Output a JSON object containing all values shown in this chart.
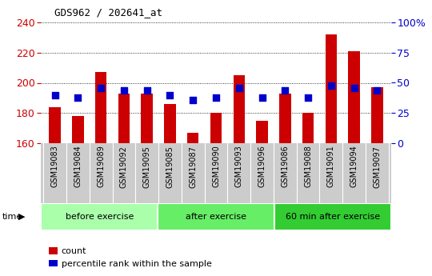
{
  "title": "GDS962 / 202641_at",
  "samples": [
    "GSM19083",
    "GSM19084",
    "GSM19089",
    "GSM19092",
    "GSM19095",
    "GSM19085",
    "GSM19087",
    "GSM19090",
    "GSM19093",
    "GSM19096",
    "GSM19086",
    "GSM19088",
    "GSM19091",
    "GSM19094",
    "GSM19097"
  ],
  "counts": [
    184,
    178,
    207,
    193,
    193,
    186,
    167,
    180,
    205,
    175,
    193,
    180,
    232,
    221,
    197
  ],
  "percentiles": [
    40,
    38,
    46,
    44,
    44,
    40,
    36,
    38,
    46,
    38,
    44,
    38,
    48,
    46,
    44
  ],
  "groups": [
    {
      "label": "before exercise",
      "start": 0,
      "end": 5,
      "color": "#aaffaa"
    },
    {
      "label": "after exercise",
      "start": 5,
      "end": 10,
      "color": "#66ee66"
    },
    {
      "label": "60 min after exercise",
      "start": 10,
      "end": 15,
      "color": "#33cc33"
    }
  ],
  "ylim_left": [
    160,
    240
  ],
  "ylim_right": [
    0,
    100
  ],
  "yticks_left": [
    160,
    180,
    200,
    220,
    240
  ],
  "yticks_right": [
    0,
    25,
    50,
    75,
    100
  ],
  "bar_color": "#cc0000",
  "dot_color": "#0000cc",
  "bar_width": 0.5,
  "dot_size": 40,
  "background_color": "#cccccc",
  "plot_bg_color": "#ffffff",
  "left_tick_color": "#cc0000",
  "right_tick_color": "#0000cc",
  "grid_color": "#000000",
  "legend_items": [
    "count",
    "percentile rank within the sample"
  ]
}
